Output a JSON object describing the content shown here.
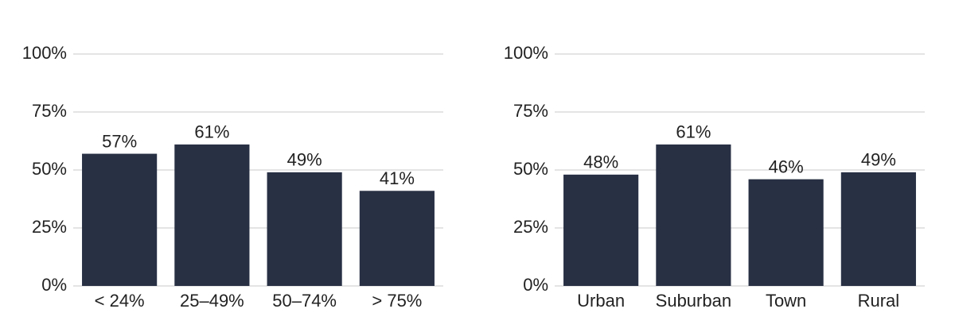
{
  "chart_data": [
    {
      "type": "bar",
      "categories": [
        "< 24%",
        "25–49%",
        "50–74%",
        "> 75%"
      ],
      "values": [
        57,
        61,
        49,
        41
      ],
      "value_labels": [
        "57%",
        "61%",
        "49%",
        "41%"
      ],
      "color": "#283044",
      "ylim": [
        0,
        100
      ],
      "yticks": [
        {
          "value": 0,
          "label": "0%"
        },
        {
          "value": 25,
          "label": "25%"
        },
        {
          "value": 50,
          "label": "50%"
        },
        {
          "value": 75,
          "label": "75%"
        },
        {
          "value": 100,
          "label": "100%"
        }
      ],
      "grid": true
    },
    {
      "type": "bar",
      "categories": [
        "Urban",
        "Suburban",
        "Town",
        "Rural"
      ],
      "values": [
        48,
        61,
        46,
        49
      ],
      "value_labels": [
        "48%",
        "61%",
        "46%",
        "49%"
      ],
      "color": "#283044",
      "ylim": [
        0,
        100
      ],
      "yticks": [
        {
          "value": 0,
          "label": "0%"
        },
        {
          "value": 25,
          "label": "25%"
        },
        {
          "value": 50,
          "label": "50%"
        },
        {
          "value": 75,
          "label": "75%"
        },
        {
          "value": 100,
          "label": "100%"
        }
      ],
      "grid": true
    }
  ]
}
